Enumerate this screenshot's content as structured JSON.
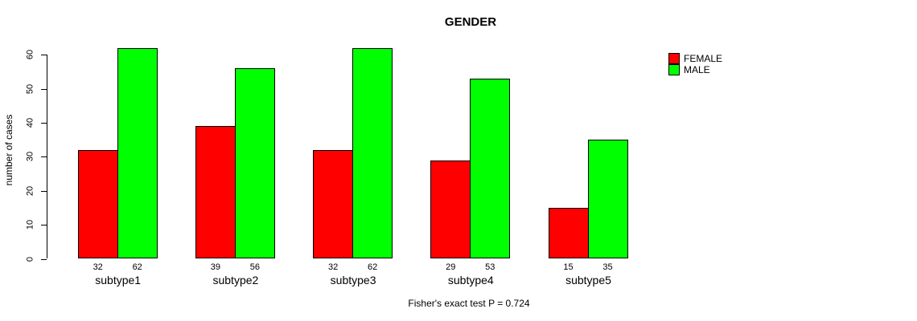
{
  "chart_data": {
    "type": "bar",
    "grouped": true,
    "title": "GENDER",
    "xlabel": "",
    "ylabel": "number of cases",
    "ylim": [
      0,
      60
    ],
    "yticks": [
      0,
      10,
      20,
      30,
      40,
      50,
      60
    ],
    "grid": false,
    "categories": [
      "subtype1",
      "subtype2",
      "subtype3",
      "subtype4",
      "subtype5"
    ],
    "series": [
      {
        "name": "FEMALE",
        "color": "#ff0000",
        "values": [
          32,
          39,
          32,
          29,
          15
        ]
      },
      {
        "name": "MALE",
        "color": "#00ff00",
        "values": [
          62,
          56,
          62,
          53,
          35
        ]
      }
    ],
    "bar_value_labels": [
      [
        "32",
        "62"
      ],
      [
        "39",
        "56"
      ],
      [
        "32",
        "62"
      ],
      [
        "29",
        "53"
      ],
      [
        "15",
        "35"
      ]
    ],
    "legend_position": "right",
    "annotation": "Fisher's exact test P = 0.724"
  },
  "legend": {
    "items": [
      {
        "label": "FEMALE",
        "color": "#ff0000"
      },
      {
        "label": "MALE",
        "color": "#00ff00"
      }
    ]
  },
  "colors": {
    "female": "#ff0000",
    "male": "#00ff00",
    "axis": "#000000",
    "background": "#ffffff"
  }
}
